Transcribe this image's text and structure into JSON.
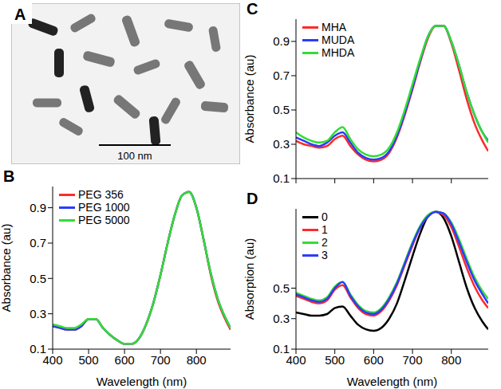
{
  "chart_data": [
    {
      "panel": "A",
      "type": "image",
      "scale_bar": "100 nm"
    },
    {
      "panel": "B",
      "type": "line",
      "x_label": "Wavelength (nm)",
      "y_label": "Absorbance (au)",
      "x": [
        400,
        420,
        440,
        460,
        480,
        500,
        520,
        540,
        560,
        580,
        600,
        620,
        640,
        660,
        680,
        700,
        720,
        740,
        760,
        780,
        800,
        820,
        840,
        860,
        880,
        895
      ],
      "series": [
        {
          "name": "PEG 356",
          "color": "#ff2a2a",
          "values": [
            0.23,
            0.22,
            0.21,
            0.21,
            0.23,
            0.27,
            0.27,
            0.22,
            0.18,
            0.15,
            0.13,
            0.13,
            0.16,
            0.24,
            0.36,
            0.52,
            0.7,
            0.86,
            0.97,
            0.99,
            0.9,
            0.72,
            0.52,
            0.37,
            0.27,
            0.21
          ]
        },
        {
          "name": "PEG 1000",
          "color": "#2a3cff",
          "values": [
            0.23,
            0.22,
            0.21,
            0.21,
            0.23,
            0.27,
            0.27,
            0.22,
            0.18,
            0.15,
            0.13,
            0.13,
            0.16,
            0.24,
            0.36,
            0.52,
            0.7,
            0.86,
            0.97,
            0.99,
            0.9,
            0.72,
            0.53,
            0.38,
            0.28,
            0.22
          ]
        },
        {
          "name": "PEG 5000",
          "color": "#33dd33",
          "values": [
            0.24,
            0.23,
            0.22,
            0.22,
            0.24,
            0.27,
            0.27,
            0.22,
            0.18,
            0.15,
            0.13,
            0.13,
            0.16,
            0.24,
            0.36,
            0.52,
            0.7,
            0.86,
            0.97,
            0.99,
            0.9,
            0.72,
            0.53,
            0.38,
            0.28,
            0.22
          ]
        }
      ],
      "xlim": [
        400,
        895
      ],
      "xticks": [
        400,
        500,
        600,
        700,
        800
      ],
      "ylim": [
        0.1,
        1.02
      ],
      "yticks": [
        0.1,
        0.3,
        0.5,
        0.7,
        0.9
      ],
      "legend": "upper left"
    },
    {
      "panel": "C",
      "type": "line",
      "y_label": "Absorbance (au)",
      "x": [
        400,
        420,
        440,
        460,
        480,
        500,
        520,
        540,
        560,
        580,
        600,
        620,
        640,
        660,
        680,
        700,
        720,
        740,
        760,
        780,
        800,
        820,
        840,
        860,
        880,
        895
      ],
      "series": [
        {
          "name": "MHA",
          "color": "#ff2a2a",
          "values": [
            0.32,
            0.3,
            0.29,
            0.28,
            0.29,
            0.33,
            0.35,
            0.29,
            0.24,
            0.21,
            0.2,
            0.21,
            0.25,
            0.34,
            0.47,
            0.62,
            0.78,
            0.92,
            0.99,
            0.99,
            0.89,
            0.73,
            0.56,
            0.42,
            0.32,
            0.26
          ]
        },
        {
          "name": "MUDA",
          "color": "#2a3cff",
          "values": [
            0.34,
            0.32,
            0.3,
            0.29,
            0.31,
            0.35,
            0.37,
            0.31,
            0.25,
            0.22,
            0.21,
            0.22,
            0.26,
            0.35,
            0.48,
            0.63,
            0.79,
            0.93,
            0.99,
            0.99,
            0.9,
            0.76,
            0.6,
            0.47,
            0.37,
            0.32
          ]
        },
        {
          "name": "MHDA",
          "color": "#33dd33",
          "values": [
            0.37,
            0.34,
            0.32,
            0.31,
            0.32,
            0.37,
            0.4,
            0.33,
            0.27,
            0.24,
            0.23,
            0.24,
            0.28,
            0.37,
            0.5,
            0.65,
            0.8,
            0.93,
            0.99,
            0.99,
            0.9,
            0.76,
            0.6,
            0.47,
            0.37,
            0.31
          ]
        }
      ],
      "xlim": [
        400,
        895
      ],
      "xticks": [
        400,
        500,
        600,
        700,
        800
      ],
      "ylim": [
        0.1,
        1.03
      ],
      "yticks": [
        0.1,
        0.3,
        0.5,
        0.7,
        0.9
      ],
      "legend": "upper left",
      "tick_labels": "y"
    },
    {
      "panel": "D",
      "type": "line",
      "x_label": "Wavelength (nm)",
      "y_label": "Absorption (au)",
      "x": [
        400,
        420,
        440,
        460,
        480,
        500,
        520,
        540,
        560,
        580,
        600,
        620,
        640,
        660,
        680,
        700,
        720,
        740,
        760,
        780,
        800,
        820,
        840,
        860,
        880,
        895
      ],
      "series": [
        {
          "name": "0",
          "color": "#000000",
          "values": [
            0.34,
            0.33,
            0.32,
            0.32,
            0.33,
            0.37,
            0.38,
            0.32,
            0.26,
            0.23,
            0.22,
            0.24,
            0.3,
            0.4,
            0.55,
            0.71,
            0.86,
            0.97,
            1.0,
            0.96,
            0.84,
            0.67,
            0.5,
            0.37,
            0.28,
            0.23
          ]
        },
        {
          "name": "1",
          "color": "#ff2a2a",
          "values": [
            0.45,
            0.43,
            0.41,
            0.4,
            0.42,
            0.49,
            0.52,
            0.44,
            0.37,
            0.33,
            0.32,
            0.35,
            0.42,
            0.52,
            0.65,
            0.78,
            0.9,
            0.97,
            1.0,
            0.98,
            0.9,
            0.77,
            0.63,
            0.51,
            0.42,
            0.37
          ]
        },
        {
          "name": "2",
          "color": "#33dd33",
          "values": [
            0.47,
            0.45,
            0.43,
            0.42,
            0.44,
            0.51,
            0.54,
            0.46,
            0.39,
            0.35,
            0.34,
            0.37,
            0.44,
            0.54,
            0.67,
            0.8,
            0.91,
            0.98,
            1.0,
            0.99,
            0.93,
            0.82,
            0.69,
            0.57,
            0.48,
            0.43
          ]
        },
        {
          "name": "3",
          "color": "#2a3cff",
          "values": [
            0.46,
            0.44,
            0.42,
            0.41,
            0.43,
            0.5,
            0.54,
            0.45,
            0.38,
            0.34,
            0.33,
            0.36,
            0.43,
            0.53,
            0.66,
            0.79,
            0.9,
            0.97,
            1.0,
            0.99,
            0.92,
            0.8,
            0.67,
            0.55,
            0.46,
            0.4
          ]
        }
      ],
      "xlim": [
        400,
        895
      ],
      "xticks": [
        400,
        500,
        600,
        700,
        800
      ],
      "ylim": [
        0.1,
        1.02
      ],
      "yticks": [
        0.1,
        0.3,
        0.5
      ],
      "legend": "upper left"
    }
  ]
}
